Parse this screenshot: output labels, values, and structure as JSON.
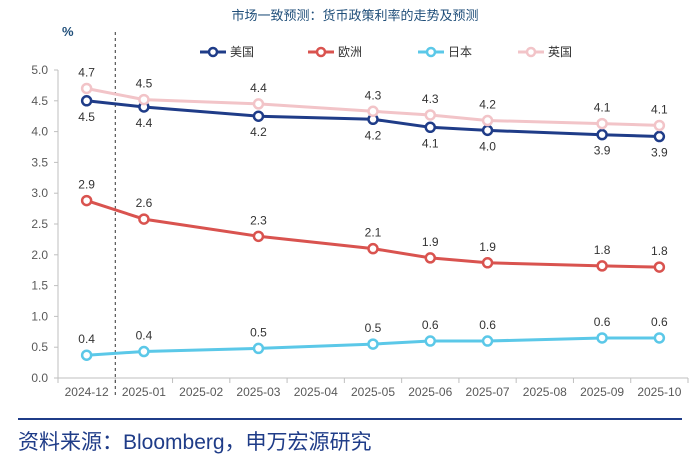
{
  "chart_data": {
    "type": "line",
    "title": "市场一致预测：货币政策利率的走势及预测",
    "ylabel": "%",
    "ylim": [
      0,
      5
    ],
    "yticks": [
      "0.0",
      "0.5",
      "1.0",
      "1.5",
      "2.0",
      "2.5",
      "3.0",
      "3.5",
      "4.0",
      "4.5",
      "5.0"
    ],
    "categories": [
      "2024-12",
      "2025-01",
      "2025-02",
      "2025-03",
      "2025-04",
      "2025-05",
      "2025-06",
      "2025-07",
      "2025-08",
      "2025-09",
      "2025-10"
    ],
    "series": [
      {
        "name": "美国",
        "color": "#1f3c88",
        "values": [
          4.5,
          4.4,
          null,
          4.25,
          null,
          4.2,
          4.07,
          4.02,
          null,
          3.95,
          3.92
        ],
        "labels": [
          "4.5",
          "4.4",
          null,
          "4.2",
          null,
          "4.2",
          "4.1",
          "4.0",
          null,
          "3.9",
          "3.9"
        ],
        "label_pos": "below"
      },
      {
        "name": "欧洲",
        "color": "#d9534f",
        "values": [
          2.88,
          2.58,
          null,
          2.3,
          null,
          2.1,
          1.95,
          1.87,
          null,
          1.82,
          1.8
        ],
        "labels": [
          "2.9",
          "2.6",
          null,
          "2.3",
          null,
          "2.1",
          "1.9",
          "1.9",
          null,
          "1.8",
          "1.8"
        ],
        "label_pos": "above"
      },
      {
        "name": "日本",
        "color": "#5bc8e8",
        "values": [
          0.37,
          0.43,
          null,
          0.48,
          null,
          0.55,
          0.6,
          0.6,
          null,
          0.65,
          0.65
        ],
        "labels": [
          "0.4",
          "0.4",
          null,
          "0.5",
          null,
          "0.5",
          "0.6",
          "0.6",
          null,
          "0.6",
          "0.6"
        ],
        "label_pos": "above"
      },
      {
        "name": "英国",
        "color": "#f2c4c8",
        "values": [
          4.7,
          4.52,
          null,
          4.45,
          null,
          4.33,
          4.27,
          4.18,
          null,
          4.13,
          4.1
        ],
        "labels": [
          "4.7",
          "4.5",
          null,
          "4.4",
          null,
          "4.3",
          "4.3",
          "4.2",
          null,
          "4.1",
          "4.1"
        ],
        "label_pos": "above"
      }
    ],
    "annotations": [
      "dashed vertical line after 2024-12 (actual vs forecast)"
    ],
    "grid": false,
    "legend": "top"
  },
  "footer": {
    "source": "资料来源：Bloomberg，申万宏源研究"
  }
}
